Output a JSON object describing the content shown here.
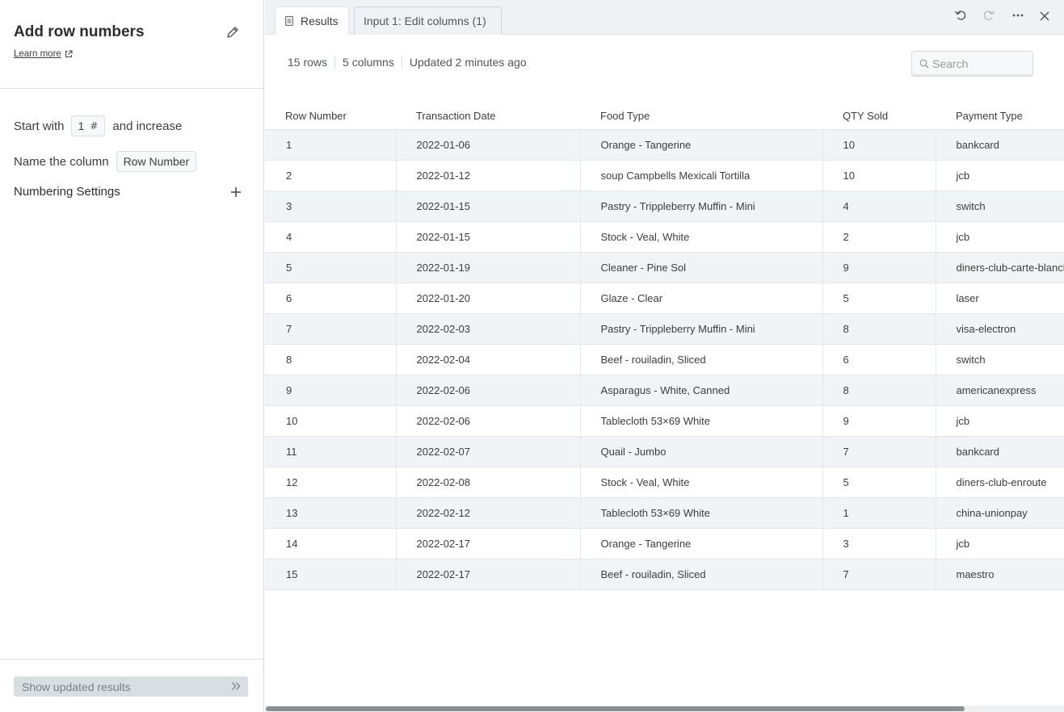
{
  "panel": {
    "title": "Add row numbers",
    "learn_more": "Learn more",
    "start_with_label": "Start with",
    "start_value": "1",
    "start_unit": "#",
    "and_increase_label": "and increase",
    "name_label": "Name the column",
    "name_value": "Row Number",
    "numbering_settings": "Numbering Settings",
    "show_updated": "Show updated results"
  },
  "tabs": {
    "results": "Results",
    "input": "Input 1: Edit columns (1)"
  },
  "meta": {
    "rows": "15 rows",
    "columns": "5 columns",
    "updated": "Updated 2 minutes ago"
  },
  "search": {
    "placeholder": "Search"
  },
  "table": {
    "headers": [
      "Row Number",
      "Transaction Date",
      "Food Type",
      "QTY Sold",
      "Payment Type"
    ],
    "rows": [
      [
        "1",
        "2022-01-06",
        "Orange - Tangerine",
        "10",
        "bankcard"
      ],
      [
        "2",
        "2022-01-12",
        "soup Campbells Mexicali Tortilla",
        "10",
        "jcb"
      ],
      [
        "3",
        "2022-01-15",
        "Pastry - Trippleberry Muffin - Mini",
        "4",
        "switch"
      ],
      [
        "4",
        "2022-01-15",
        "Stock - Veal, White",
        "2",
        "jcb"
      ],
      [
        "5",
        "2022-01-19",
        "Cleaner - Pine Sol",
        "9",
        "diners-club-carte-blanche"
      ],
      [
        "6",
        "2022-01-20",
        "Glaze - Clear",
        "5",
        "laser"
      ],
      [
        "7",
        "2022-02-03",
        "Pastry - Trippleberry Muffin - Mini",
        "8",
        "visa-electron"
      ],
      [
        "8",
        "2022-02-04",
        "Beef - rouiladin, Sliced",
        "6",
        "switch"
      ],
      [
        "9",
        "2022-02-06",
        "Asparagus - White, Canned",
        "8",
        "americanexpress"
      ],
      [
        "10",
        "2022-02-06",
        "Tablecloth 53×69 White",
        "9",
        "jcb"
      ],
      [
        "11",
        "2022-02-07",
        "Quail - Jumbo",
        "7",
        "bankcard"
      ],
      [
        "12",
        "2022-02-08",
        "Stock - Veal, White",
        "5",
        "diners-club-enroute"
      ],
      [
        "13",
        "2022-02-12",
        "Tablecloth 53×69 White",
        "1",
        "china-unionpay"
      ],
      [
        "14",
        "2022-02-17",
        "Orange - Tangerine",
        "3",
        "jcb"
      ],
      [
        "15",
        "2022-02-17",
        "Beef - rouiladin, Sliced",
        "7",
        "maestro"
      ]
    ]
  },
  "icons": {
    "edit": "pencil-icon",
    "external": "external-link-icon",
    "plus": "plus-icon",
    "chevrons": "double-chevron-right-icon",
    "doc": "document-icon",
    "undo": "undo-icon",
    "redo": "redo-icon",
    "more": "more-icon",
    "close": "close-icon",
    "search": "search-icon"
  },
  "colors": {
    "row_stripe": "#f1f4f6",
    "tabbar_bg": "#eef2f5",
    "button_disabled_bg": "#d9dee3"
  }
}
